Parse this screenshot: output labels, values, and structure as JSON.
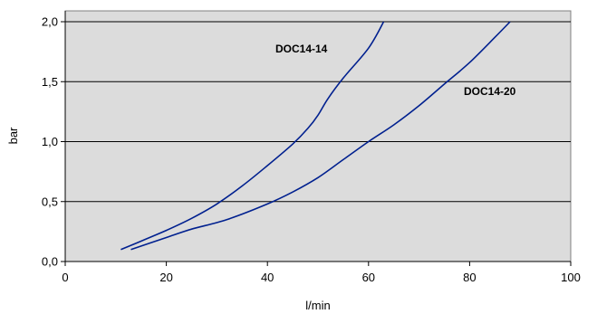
{
  "chart_data": {
    "type": "line",
    "title": "",
    "xlabel": "l/min",
    "ylabel": "bar",
    "xlim": [
      0,
      100
    ],
    "ylim": [
      0,
      2
    ],
    "x_ticks": [
      0,
      20,
      40,
      60,
      80,
      100
    ],
    "x_tick_labels": [
      "0",
      "20",
      "40",
      "60",
      "80",
      "100"
    ],
    "y_ticks": [
      0,
      0.5,
      1,
      1.5,
      2
    ],
    "y_tick_labels": [
      "0,0",
      "0,5",
      "1,0",
      "1,5",
      "2,0"
    ],
    "grid": "horizontal",
    "plot_background": "#dcdcdc",
    "line_color": "#00208f",
    "series": [
      {
        "name": "DOC14-14",
        "points": [
          [
            11,
            0.1
          ],
          [
            15,
            0.17
          ],
          [
            20,
            0.26
          ],
          [
            25,
            0.36
          ],
          [
            30,
            0.48
          ],
          [
            35,
            0.63
          ],
          [
            40,
            0.8
          ],
          [
            45,
            0.98
          ],
          [
            48,
            1.11
          ],
          [
            50,
            1.22
          ],
          [
            52,
            1.36
          ],
          [
            55,
            1.53
          ],
          [
            60,
            1.78
          ],
          [
            63,
            2.0
          ]
        ]
      },
      {
        "name": "DOC14-20",
        "points": [
          [
            13,
            0.1
          ],
          [
            20,
            0.2
          ],
          [
            25,
            0.27
          ],
          [
            32,
            0.35
          ],
          [
            40,
            0.48
          ],
          [
            45,
            0.58
          ],
          [
            50,
            0.7
          ],
          [
            55,
            0.85
          ],
          [
            60,
            1.0
          ],
          [
            65,
            1.14
          ],
          [
            70,
            1.3
          ],
          [
            75,
            1.48
          ],
          [
            80,
            1.66
          ],
          [
            85,
            1.87
          ],
          [
            88,
            2.0
          ]
        ]
      }
    ]
  }
}
